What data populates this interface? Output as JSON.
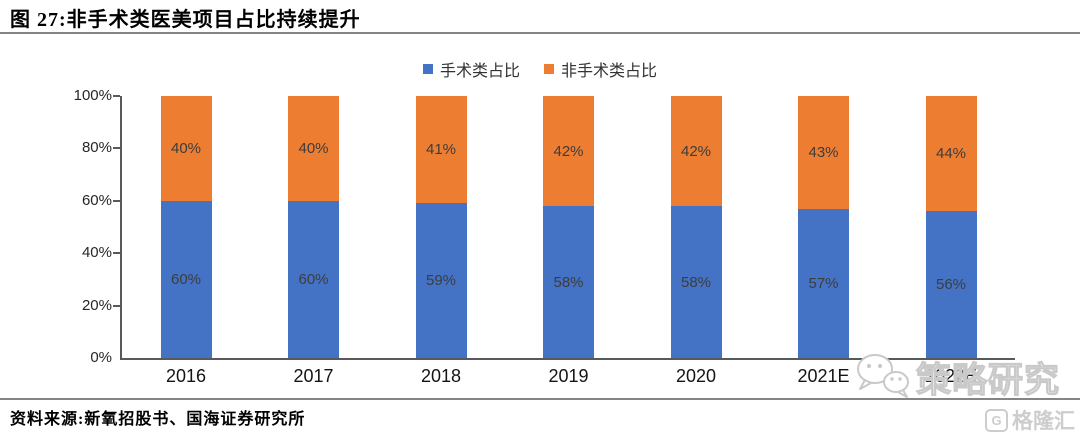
{
  "figure": {
    "title": "图 27:非手术类医美项目占比持续提升",
    "source": "资料来源:新氧招股书、国海证券研究所"
  },
  "chart_data": {
    "type": "bar",
    "stacked": true,
    "title": "非手术类医美项目占比持续提升",
    "categories": [
      "2016",
      "2017",
      "2018",
      "2019",
      "2020",
      "2021E",
      "2022E"
    ],
    "series": [
      {
        "name": "手术类占比",
        "color": "#4472C4",
        "values": [
          60,
          60,
          59,
          58,
          58,
          57,
          56
        ]
      },
      {
        "name": "非手术类占比",
        "color": "#ED7D31",
        "values": [
          40,
          40,
          41,
          42,
          42,
          43,
          44
        ]
      }
    ],
    "data_labels": true,
    "value_suffix": "%",
    "xlabel": "",
    "ylabel": "",
    "ylim": [
      0,
      100
    ],
    "yticks": [
      0,
      20,
      40,
      60,
      80,
      100
    ],
    "ytick_labels": [
      "0%",
      "20%",
      "40%",
      "60%",
      "80%",
      "100%"
    ],
    "legend_position": "top",
    "grid": false,
    "axis_color": "#595959"
  },
  "watermark": {
    "text": "策略研究"
  },
  "brand": {
    "name": "格隆汇",
    "icon_letter": "G"
  }
}
